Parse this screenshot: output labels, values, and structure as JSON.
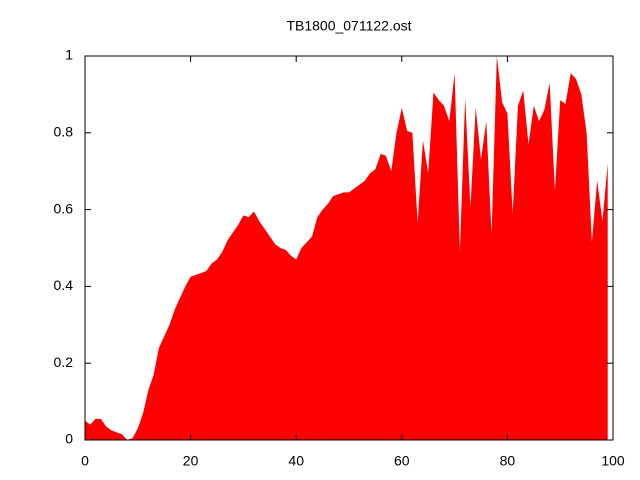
{
  "chart_data": {
    "type": "area",
    "title": "TB1800_071122.ost",
    "color": "#ff0000",
    "x": [
      0,
      1,
      2,
      3,
      4,
      5,
      6,
      7,
      8,
      9,
      10,
      11,
      12,
      13,
      14,
      15,
      16,
      17,
      18,
      19,
      20,
      21,
      22,
      23,
      24,
      25,
      26,
      27,
      28,
      29,
      30,
      31,
      32,
      33,
      34,
      35,
      36,
      37,
      38,
      39,
      40,
      41,
      42,
      43,
      44,
      45,
      46,
      47,
      48,
      49,
      50,
      51,
      52,
      53,
      54,
      55,
      56,
      57,
      58,
      59,
      60,
      61,
      62,
      63,
      64,
      65,
      66,
      67,
      68,
      69,
      70,
      71,
      72,
      73,
      74,
      75,
      76,
      77,
      78,
      79,
      80,
      81,
      82,
      83,
      84,
      85,
      86,
      87,
      88,
      89,
      90,
      91,
      92,
      93,
      94,
      95,
      96,
      97,
      98,
      99
    ],
    "values": [
      0.05,
      0.04,
      0.055,
      0.055,
      0.035,
      0.025,
      0.02,
      0.015,
      0.0,
      0.005,
      0.03,
      0.07,
      0.13,
      0.17,
      0.24,
      0.27,
      0.3,
      0.34,
      0.37,
      0.4,
      0.425,
      0.43,
      0.435,
      0.44,
      0.46,
      0.47,
      0.49,
      0.52,
      0.54,
      0.56,
      0.585,
      0.58,
      0.595,
      0.57,
      0.55,
      0.53,
      0.51,
      0.5,
      0.495,
      0.48,
      0.47,
      0.5,
      0.515,
      0.53,
      0.58,
      0.6,
      0.615,
      0.635,
      0.64,
      0.645,
      0.645,
      0.655,
      0.665,
      0.675,
      0.695,
      0.705,
      0.745,
      0.74,
      0.7,
      0.8,
      0.865,
      0.805,
      0.8,
      0.565,
      0.78,
      0.695,
      0.905,
      0.885,
      0.87,
      0.83,
      0.955,
      0.49,
      0.89,
      0.605,
      0.865,
      0.73,
      0.83,
      0.535,
      1.0,
      0.88,
      0.85,
      0.59,
      0.87,
      0.91,
      0.77,
      0.87,
      0.83,
      0.86,
      0.93,
      0.65,
      0.885,
      0.875,
      0.955,
      0.94,
      0.9,
      0.8,
      0.515,
      0.675,
      0.57,
      0.72
    ],
    "xlim": [
      0,
      100
    ],
    "ylim": [
      0,
      1
    ],
    "xticks": [
      0,
      20,
      40,
      60,
      80,
      100
    ],
    "yticks": [
      0,
      0.2,
      0.4,
      0.6,
      0.8,
      1
    ]
  }
}
